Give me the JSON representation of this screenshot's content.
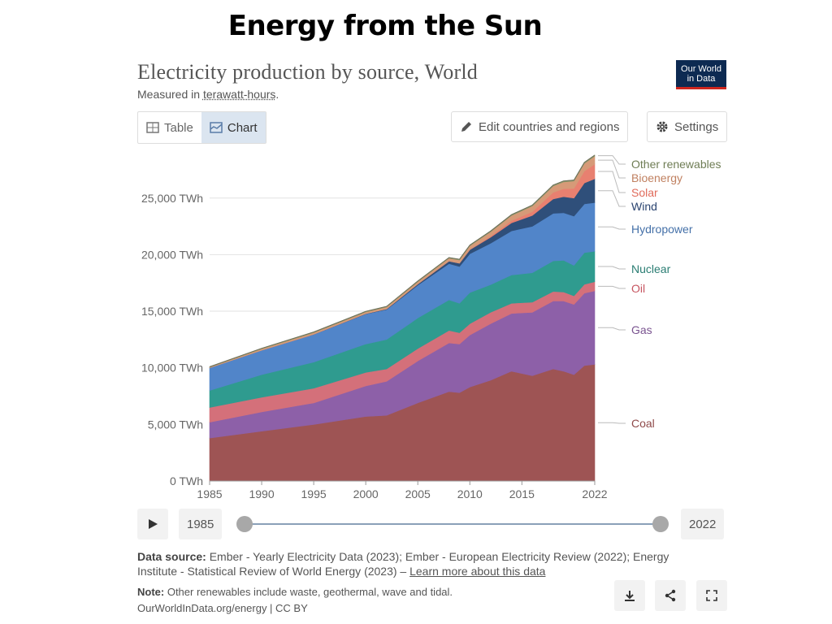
{
  "slide": {
    "title": "Energy from the Sun"
  },
  "header": {
    "title": "Electricity production by source, World",
    "subtitle_prefix": "Measured in ",
    "subtitle_unit": "terawatt-hours",
    "subtitle_suffix": ".",
    "logo_line1": "Our World",
    "logo_line2": "in Data"
  },
  "tabs": [
    {
      "label": "Table",
      "active": false
    },
    {
      "label": "Chart",
      "active": true
    }
  ],
  "controls": {
    "edit_label": "Edit countries and regions",
    "settings_label": "Settings"
  },
  "timeline": {
    "start_year": "1985",
    "end_year": "2022"
  },
  "footer": {
    "source_label": "Data source:",
    "source_text": " Ember - Yearly Electricity Data (2023); Ember - European Electricity Review (2022); Energy Institute - Statistical Review of World Energy (2023) – ",
    "source_link": "Learn more about this data",
    "note_label": "Note:",
    "note_text": " Other renewables include waste, geothermal, wave and tidal.",
    "credit": "OurWorldInData.org/energy | CC BY"
  },
  "chart_data": {
    "type": "area",
    "stacked": true,
    "title": "Electricity production by source, World",
    "ylabel": "TWh",
    "ylim": [
      0,
      28500
    ],
    "yticks": [
      0,
      5000,
      10000,
      15000,
      20000,
      25000
    ],
    "ytick_labels": [
      "0 TWh",
      "5,000 TWh",
      "10,000 TWh",
      "15,000 TWh",
      "20,000 TWh",
      "25,000 TWh"
    ],
    "xticks": [
      1985,
      1990,
      1995,
      2000,
      2005,
      2010,
      2015,
      2022
    ],
    "x": [
      1985,
      1990,
      1995,
      2000,
      2002,
      2005,
      2008,
      2009,
      2010,
      2012,
      2014,
      2016,
      2018,
      2019,
      2020,
      2021,
      2022
    ],
    "series": [
      {
        "name": "Coal",
        "color": "#9e5454",
        "values": [
          3800,
          4400,
          5000,
          5700,
          5800,
          6900,
          7900,
          7800,
          8300,
          8900,
          9700,
          9300,
          9900,
          9700,
          9400,
          10200,
          10300
        ]
      },
      {
        "name": "Gas",
        "color": "#8d60a8",
        "values": [
          1400,
          1700,
          1900,
          2700,
          3000,
          3700,
          4300,
          4300,
          4600,
          5000,
          5100,
          5600,
          6000,
          6200,
          6200,
          6400,
          6500
        ]
      },
      {
        "name": "Oil",
        "color": "#d4707a",
        "values": [
          1300,
          1300,
          1300,
          1200,
          1100,
          1100,
          1100,
          1000,
          1000,
          1000,
          900,
          900,
          850,
          800,
          750,
          780,
          800
        ]
      },
      {
        "name": "Nuclear",
        "color": "#2f9b8f",
        "values": [
          1500,
          2000,
          2300,
          2500,
          2600,
          2700,
          2700,
          2600,
          2750,
          2450,
          2500,
          2600,
          2700,
          2800,
          2700,
          2800,
          2700
        ]
      },
      {
        "name": "Hydropower",
        "color": "#5185c9",
        "values": [
          2000,
          2150,
          2450,
          2650,
          2650,
          2900,
          3200,
          3250,
          3430,
          3660,
          3900,
          4100,
          4200,
          4200,
          4350,
          4300,
          4300
        ]
      },
      {
        "name": "Wind",
        "color": "#2f4f7a",
        "values": [
          0,
          0,
          5,
          30,
          50,
          100,
          220,
          280,
          350,
          530,
          700,
          960,
          1270,
          1420,
          1600,
          1850,
          2100
        ]
      },
      {
        "name": "Solar",
        "color": "#e88070",
        "values": [
          0,
          0,
          0,
          0,
          0,
          5,
          15,
          20,
          30,
          100,
          200,
          330,
          580,
          700,
          850,
          1050,
          1300
        ]
      },
      {
        "name": "Bioenergy",
        "color": "#d69a78",
        "values": [
          50,
          120,
          150,
          150,
          170,
          200,
          250,
          280,
          320,
          380,
          450,
          500,
          560,
          600,
          650,
          680,
          700
        ]
      },
      {
        "name": "Other renewables",
        "color": "#8a9a6a",
        "values": [
          40,
          50,
          60,
          60,
          60,
          60,
          60,
          60,
          70,
          70,
          80,
          80,
          85,
          90,
          90,
          90,
          95
        ]
      }
    ]
  }
}
